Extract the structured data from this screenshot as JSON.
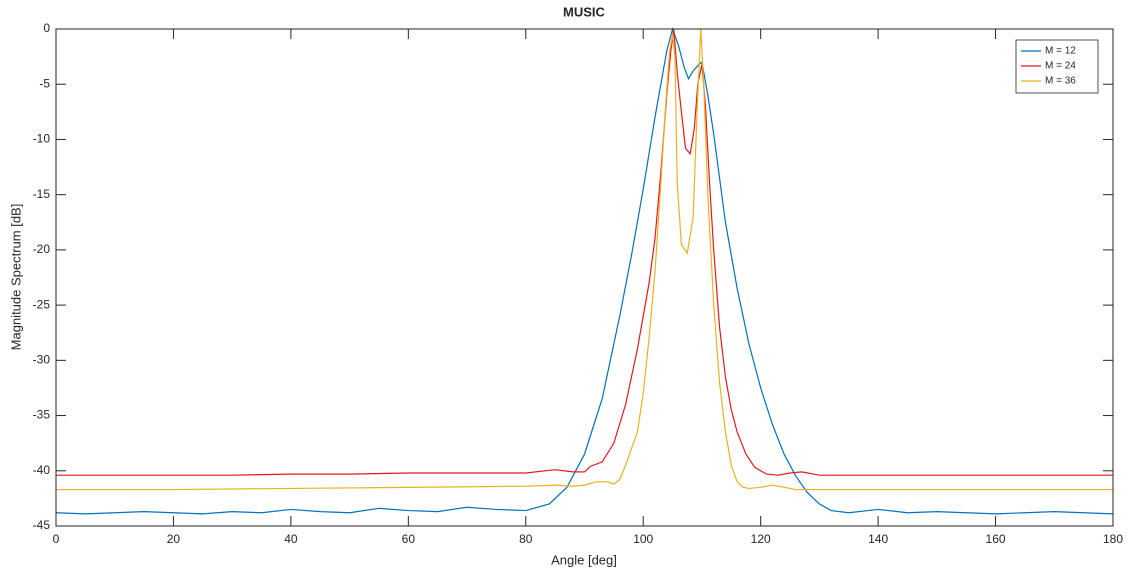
{
  "chart_data": {
    "type": "line",
    "title": "MUSIC",
    "xlabel": "Angle [deg]",
    "ylabel": "Magnitude Spectrum [dB]",
    "xlim": [
      0,
      180
    ],
    "xticks": [
      0,
      20,
      40,
      60,
      80,
      100,
      120,
      140,
      160,
      180
    ],
    "ylim": [
      -45,
      0
    ],
    "yticks": [
      0,
      -5,
      -10,
      -15,
      -20,
      -25,
      -30,
      -35,
      -40,
      -45
    ],
    "grid": false,
    "legend": "top-right",
    "series": [
      {
        "name": "M = 12",
        "color": "#0072bd",
        "x": [
          0,
          5,
          10,
          15,
          20,
          25,
          30,
          35,
          40,
          45,
          50,
          55,
          60,
          65,
          70,
          75,
          80,
          84,
          87,
          90,
          93,
          96,
          98,
          100,
          102,
          103,
          104,
          105,
          106,
          107,
          107.7,
          108.5,
          109.5,
          110,
          111,
          112,
          113,
          114,
          116,
          118,
          120,
          122,
          124,
          126,
          128,
          130,
          132,
          135,
          140,
          145,
          150,
          155,
          160,
          165,
          170,
          175,
          180
        ],
        "values": [
          -43.8,
          -43.9,
          -43.8,
          -43.7,
          -43.8,
          -43.9,
          -43.7,
          -43.8,
          -43.5,
          -43.7,
          -43.8,
          -43.4,
          -43.6,
          -43.7,
          -43.3,
          -43.5,
          -43.6,
          -43,
          -41.5,
          -38.5,
          -33.5,
          -26,
          -20.5,
          -14.5,
          -8,
          -5,
          -2,
          0,
          -1.5,
          -3.5,
          -4.5,
          -3.8,
          -3.2,
          -3,
          -6,
          -9.5,
          -13.5,
          -17.5,
          -23.5,
          -28.5,
          -32.5,
          -35.8,
          -38.5,
          -40.5,
          -42,
          -43,
          -43.6,
          -43.8,
          -43.5,
          -43.8,
          -43.7,
          -43.8,
          -43.9,
          -43.8,
          -43.7,
          -43.8,
          -43.9
        ]
      },
      {
        "name": "M = 24",
        "color": "#e3191c",
        "x": [
          0,
          10,
          20,
          30,
          40,
          50,
          60,
          70,
          80,
          85,
          88,
          90,
          91,
          93,
          95,
          97,
          99,
          101,
          102,
          103,
          104,
          104.7,
          105.2,
          105.8,
          106.5,
          107.2,
          108,
          108.7,
          109.3,
          110,
          110.6,
          111.3,
          112,
          113,
          114,
          115,
          116,
          117.5,
          119,
          121,
          123,
          125,
          127,
          130,
          140,
          150,
          160,
          170,
          180
        ],
        "values": [
          -40.4,
          -40.4,
          -40.4,
          -40.4,
          -40.3,
          -40.3,
          -40.2,
          -40.2,
          -40.2,
          -39.9,
          -40.1,
          -40.1,
          -39.6,
          -39.2,
          -37.5,
          -34,
          -29,
          -23,
          -19,
          -13,
          -6,
          -2,
          0,
          -4,
          -7.5,
          -10.8,
          -11.3,
          -9,
          -5,
          -3.2,
          -7,
          -14,
          -20,
          -27,
          -31.5,
          -34.5,
          -36.5,
          -38.5,
          -39.7,
          -40.3,
          -40.4,
          -40.2,
          -40.1,
          -40.4,
          -40.4,
          -40.4,
          -40.4,
          -40.4,
          -40.4
        ]
      },
      {
        "name": "M = 36",
        "color": "#edb120",
        "x": [
          0,
          20,
          40,
          60,
          80,
          85,
          88,
          90,
          92,
          94,
          95,
          96,
          97,
          98,
          99,
          100,
          101,
          102,
          103,
          103.8,
          104.5,
          105,
          105.4,
          105.8,
          106.5,
          107.5,
          108.5,
          109.2,
          109.8,
          110.3,
          111,
          112,
          113,
          114,
          115,
          116,
          117,
          118,
          120,
          122,
          124,
          126,
          130,
          140,
          160,
          180
        ],
        "values": [
          -41.7,
          -41.7,
          -41.6,
          -41.5,
          -41.4,
          -41.3,
          -41.4,
          -41.3,
          -41,
          -41,
          -41.2,
          -40.8,
          -39.5,
          -38,
          -36.5,
          -33,
          -28,
          -22,
          -14,
          -7,
          -2,
          -0.5,
          -2.5,
          -14,
          -19.5,
          -20.3,
          -17,
          -7,
          0,
          -5,
          -15,
          -25,
          -32,
          -36.5,
          -39.5,
          -41,
          -41.5,
          -41.6,
          -41.5,
          -41.3,
          -41.5,
          -41.7,
          -41.7,
          -41.7,
          -41.7,
          -41.7
        ]
      }
    ]
  }
}
